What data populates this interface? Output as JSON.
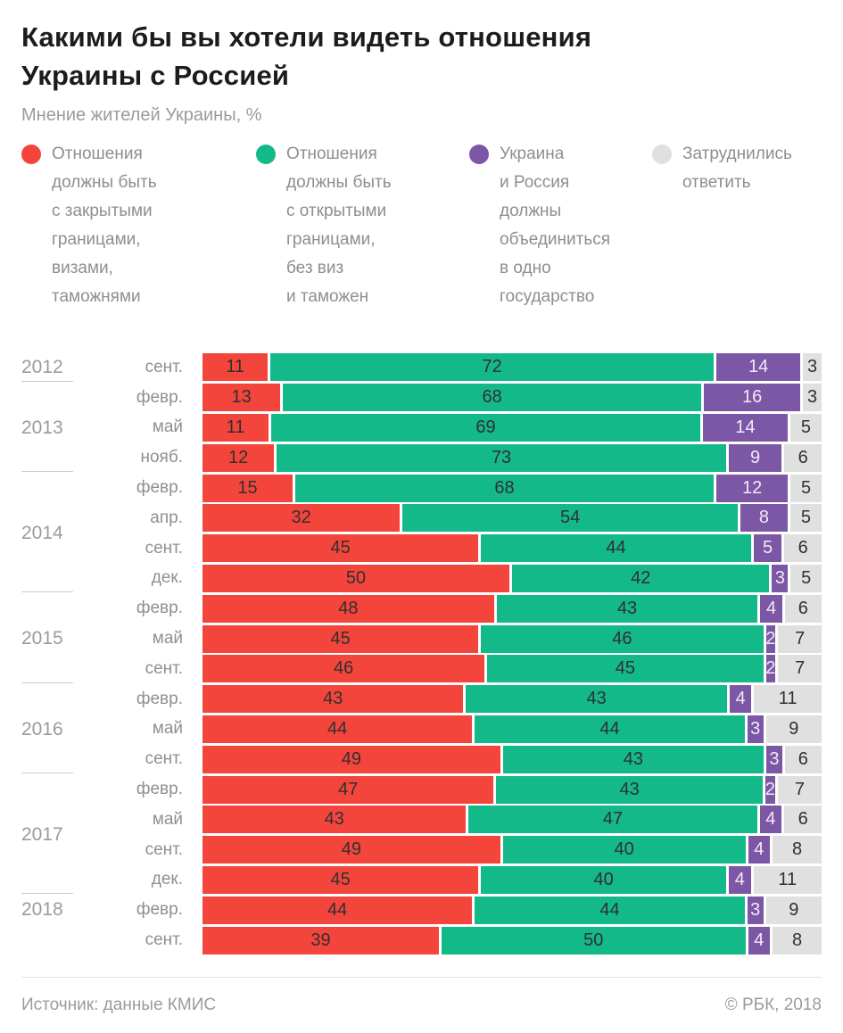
{
  "title_lines": [
    "Какими бы вы хотели видеть отношения",
    "Украины с Россией"
  ],
  "subtitle": "Мнение жителей Украины, %",
  "legend": [
    {
      "color": "#f4453c",
      "label": "Отношения\nдолжны быть\nс закрытыми\nграницами,\nвизами,\nтаможнями"
    },
    {
      "color": "#14b98a",
      "label": "Отношения\nдолжны быть\nс открытыми\nграницами,\nбез виз\nи таможен"
    },
    {
      "color": "#7c57a6",
      "label": "Украина\nи Россия\nдолжны\nобъединиться\nв одно\nгосударство"
    },
    {
      "color": "#e0e0e0",
      "label": "Затруднились\nответить"
    }
  ],
  "chart_data": {
    "type": "bar",
    "stacked": true,
    "orientation": "horizontal",
    "unit": "%",
    "series": [
      {
        "name": "Отношения должны быть с закрытыми границами, визами, таможнями",
        "color": "#f4453c",
        "value_text_color": "#303030"
      },
      {
        "name": "Отношения должны быть с открытыми границами, без виз и таможен",
        "color": "#14b98a",
        "value_text_color": "#303030"
      },
      {
        "name": "Украина и Россия должны объединиться в одно государство",
        "color": "#7c57a6",
        "value_text_color": "#f1eaf7"
      },
      {
        "name": "Затруднились ответить",
        "color": "#e0e0e0",
        "value_text_color": "#303030"
      }
    ],
    "rows": [
      {
        "month": "сент.",
        "values": [
          11,
          72,
          14,
          3
        ]
      },
      {
        "month": "февр.",
        "values": [
          13,
          68,
          16,
          3
        ]
      },
      {
        "month": "май",
        "values": [
          11,
          69,
          14,
          5
        ]
      },
      {
        "month": "нояб.",
        "values": [
          12,
          73,
          9,
          6
        ]
      },
      {
        "month": "февр.",
        "values": [
          15,
          68,
          12,
          5
        ]
      },
      {
        "month": "апр.",
        "values": [
          32,
          54,
          8,
          5
        ]
      },
      {
        "month": "сент.",
        "values": [
          45,
          44,
          5,
          6
        ]
      },
      {
        "month": "дек.",
        "values": [
          50,
          42,
          3,
          5
        ]
      },
      {
        "month": "февр.",
        "values": [
          48,
          43,
          4,
          6
        ]
      },
      {
        "month": "май",
        "values": [
          45,
          46,
          2,
          7
        ]
      },
      {
        "month": "сент.",
        "values": [
          46,
          45,
          2,
          7
        ]
      },
      {
        "month": "февр.",
        "values": [
          43,
          43,
          4,
          11
        ]
      },
      {
        "month": "май",
        "values": [
          44,
          44,
          3,
          9
        ]
      },
      {
        "month": "сент.",
        "values": [
          49,
          43,
          3,
          6
        ]
      },
      {
        "month": "февр.",
        "values": [
          47,
          43,
          2,
          7
        ]
      },
      {
        "month": "май",
        "values": [
          43,
          47,
          4,
          6
        ]
      },
      {
        "month": "сент.",
        "values": [
          49,
          40,
          4,
          8
        ]
      },
      {
        "month": "дек.",
        "values": [
          45,
          40,
          4,
          11
        ]
      },
      {
        "month": "февр.",
        "values": [
          44,
          44,
          3,
          9
        ]
      },
      {
        "month": "сент.",
        "values": [
          39,
          50,
          4,
          8
        ]
      }
    ],
    "years": [
      {
        "label": "2012",
        "row": 0
      },
      {
        "label": "2013",
        "row": 2
      },
      {
        "label": "2014",
        "row": 5.5
      },
      {
        "label": "2015",
        "row": 9
      },
      {
        "label": "2016",
        "row": 12
      },
      {
        "label": "2017",
        "row": 15.5
      },
      {
        "label": "2018",
        "row": 18
      }
    ],
    "year_separators_after_rows": [
      0,
      3,
      7,
      10,
      13,
      17
    ]
  },
  "footer": {
    "source": "Источник: данные КМИС",
    "copyright": "© РБК, 2018"
  }
}
